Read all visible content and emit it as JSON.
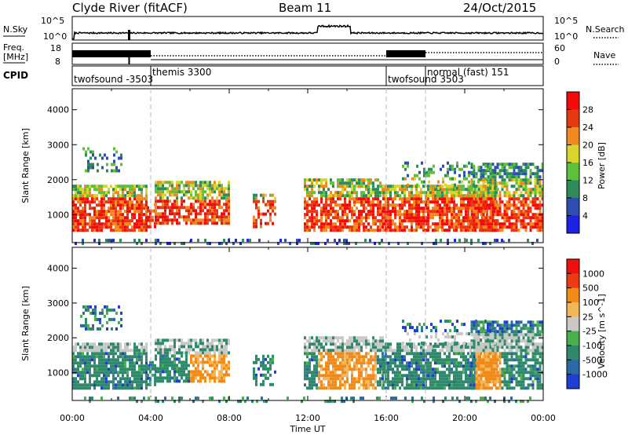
{
  "header": {
    "station": "Clyde River (fitACF)",
    "beam": "Beam 11",
    "date": "24/Oct/2015"
  },
  "strips": {
    "nsky_label": "N.Sky",
    "nsearch_label": "N.Search",
    "nsky_ticks": [
      "10^5",
      "10^0"
    ],
    "nsearch_ticks": [
      "10^5",
      "10^0"
    ],
    "freq_label_1": "Freq.",
    "freq_label_2": "[MHz]",
    "freq_ticks": [
      "18",
      "8"
    ],
    "nave_label": "Nave",
    "nave_ticks": [
      "60",
      "0"
    ],
    "cpid_label": "CPID"
  },
  "cpid_segments": [
    {
      "label": "twofsound -3503",
      "start_hr": 0.0
    },
    {
      "label": "themis 3300",
      "start_hr": 4.0
    },
    {
      "label": "twofsound 3503",
      "start_hr": 16.0
    },
    {
      "label": "normal (fast) 151",
      "start_hr": 18.0
    }
  ],
  "chart_data": [
    {
      "type": "heatmap",
      "name": "Power",
      "ylabel": "Slant Range [km]",
      "xlim_hr": [
        0,
        24
      ],
      "ylim": [
        200,
        4600
      ],
      "yticks": [
        "1000",
        "2000",
        "3000",
        "4000"
      ],
      "colorbar_label": "Power [dB]",
      "colorbar_ticks": [
        "4",
        "8",
        "12",
        "16",
        "20",
        "24",
        "28"
      ],
      "colorbar_colors": [
        "#1e22e6",
        "#2f4fb0",
        "#2e8c5a",
        "#5fc03a",
        "#d9d52a",
        "#f08a1e",
        "#e83a12",
        "#f40a0a"
      ]
    },
    {
      "type": "heatmap",
      "name": "Velocity",
      "ylabel": "Slant Range [km]",
      "xlabel": "Time UT",
      "xlim_hr": [
        0,
        24
      ],
      "ylim": [
        200,
        4600
      ],
      "yticks": [
        "1000",
        "2000",
        "3000",
        "4000"
      ],
      "xticks": [
        "00:00",
        "04:00",
        "08:00",
        "12:00",
        "16:00",
        "20:00",
        "00:00"
      ],
      "colorbar_label": "Velocity [m s^-1]",
      "colorbar_ticks": [
        "1000",
        "500",
        "100",
        "25",
        "-25",
        "-100",
        "-500",
        "-1000"
      ],
      "colorbar_colors": [
        "#1f3ed6",
        "#2a6aa6",
        "#2d8a6a",
        "#48b04a",
        "#c8c8c4",
        "#f3b75a",
        "#f28a18",
        "#ee3a12",
        "#f10f0f"
      ]
    }
  ]
}
